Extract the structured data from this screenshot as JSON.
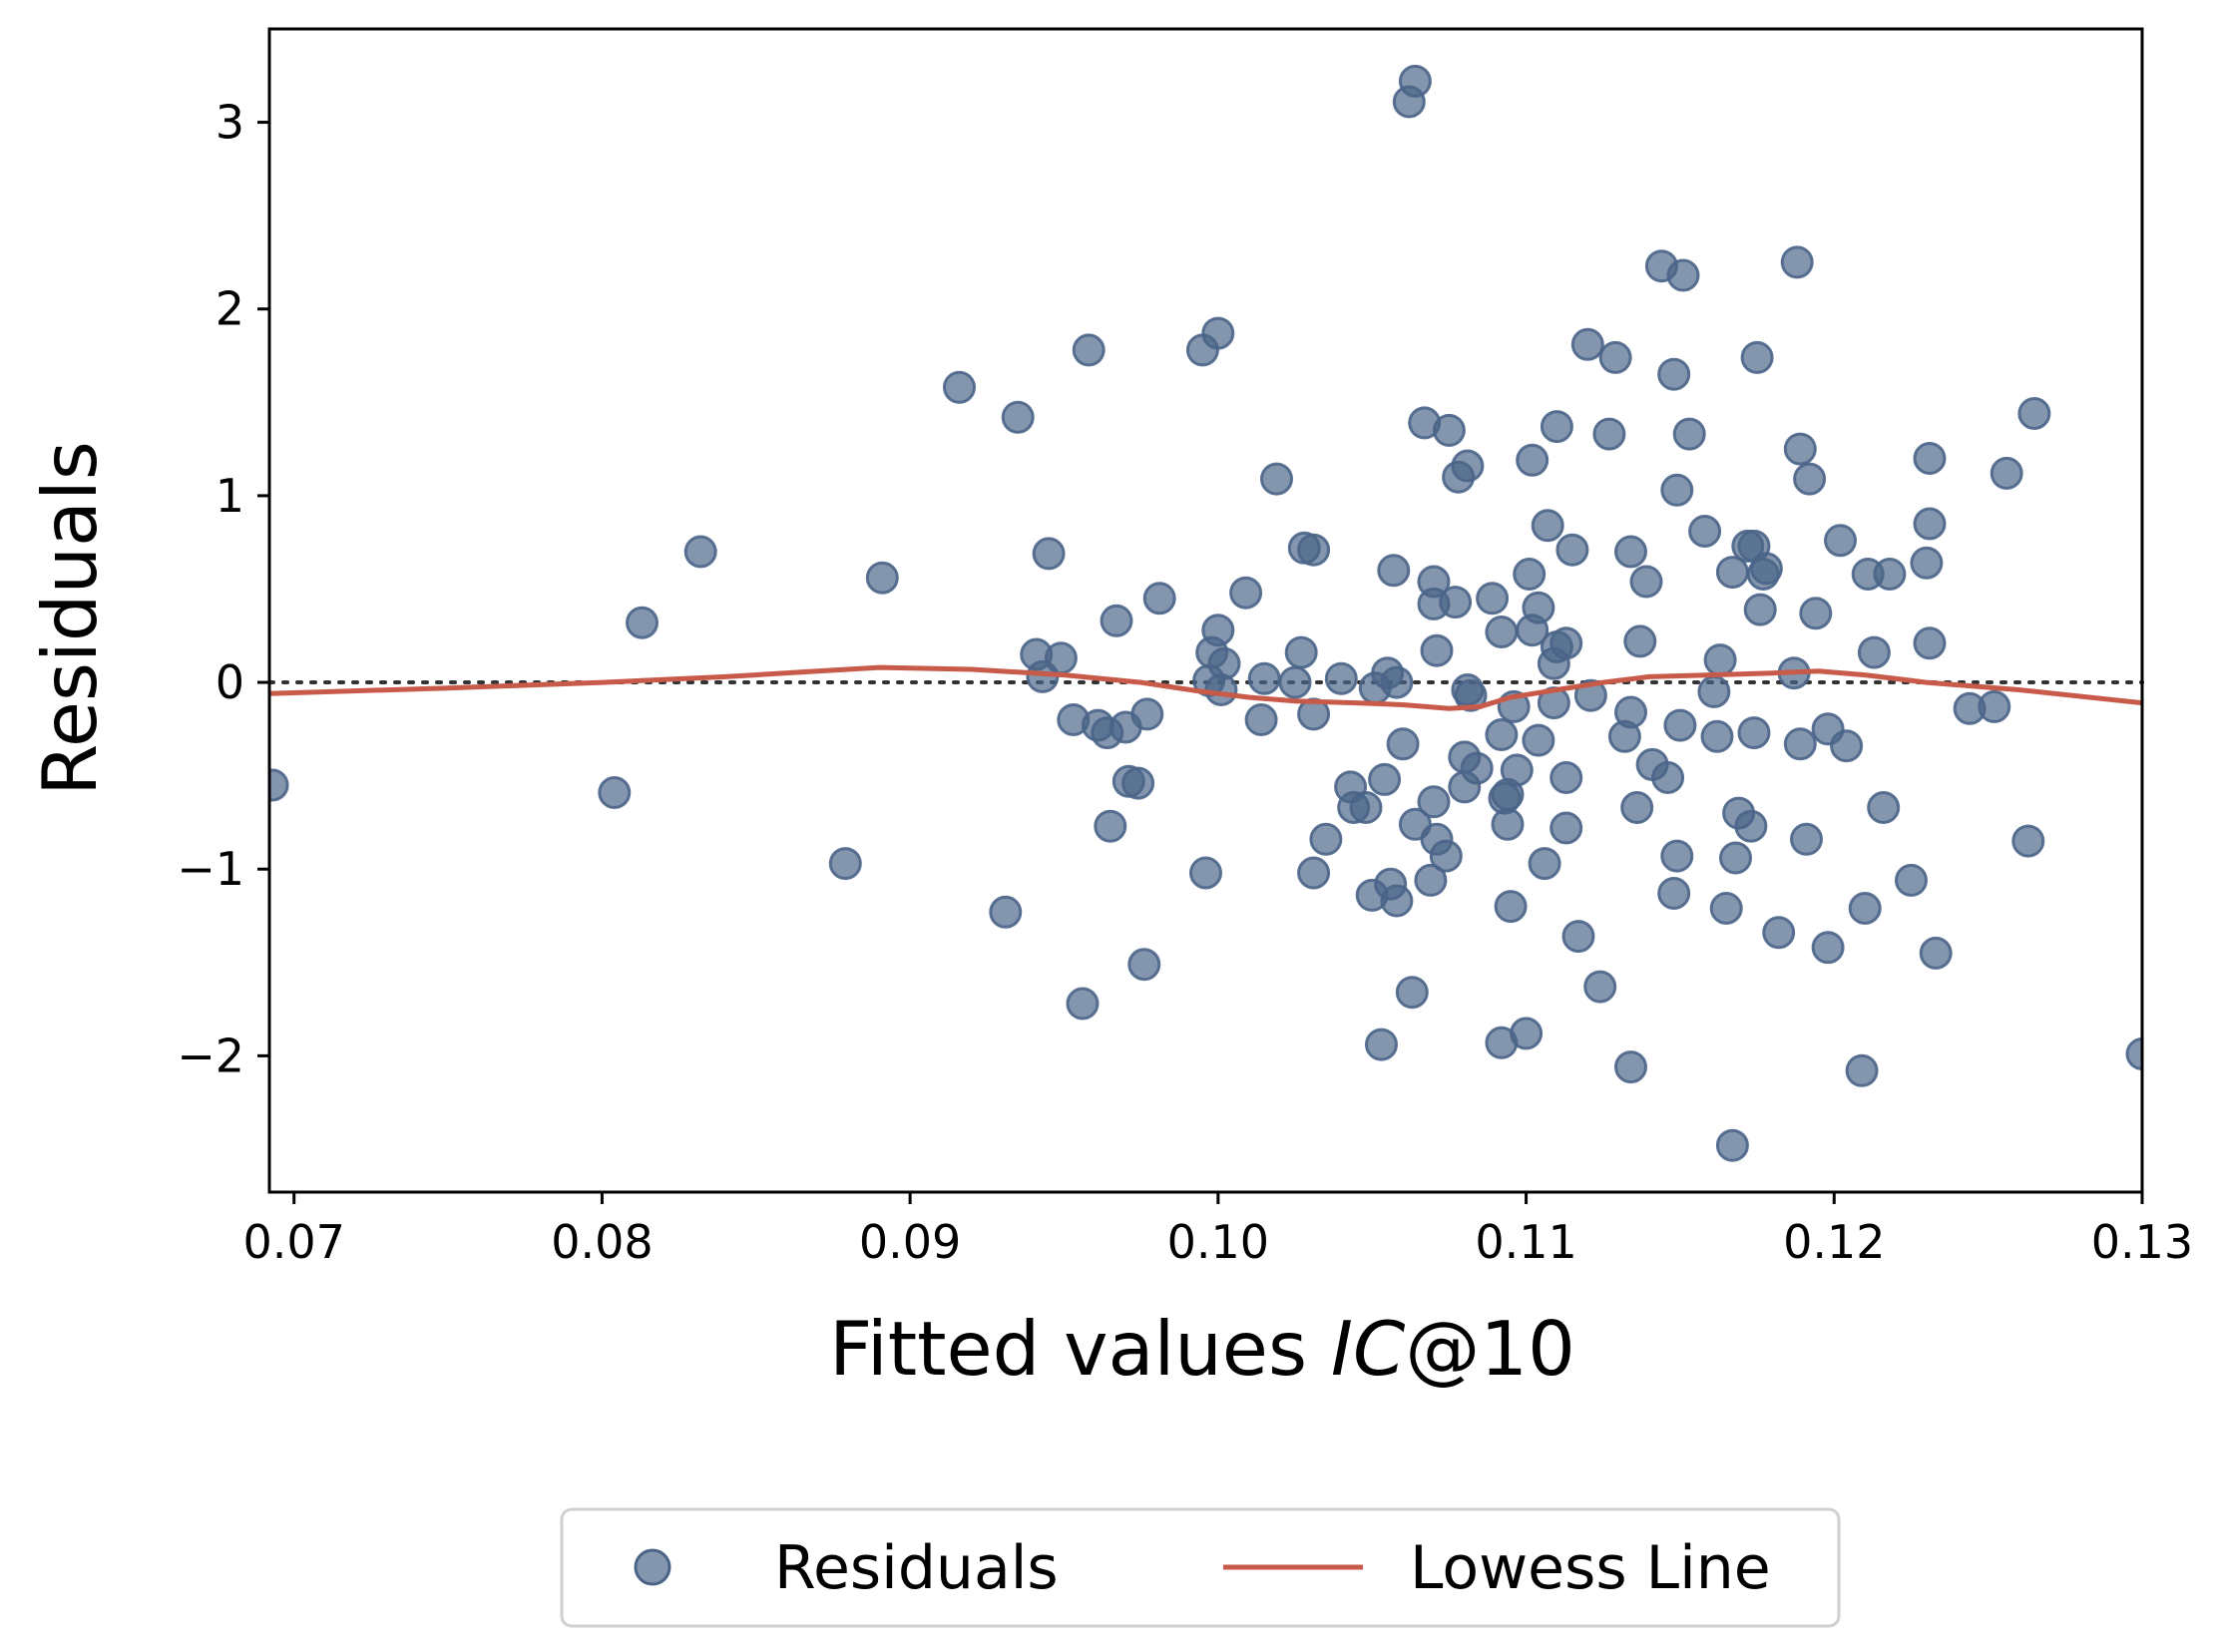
{
  "chart_data": {
    "type": "scatter",
    "title": "",
    "xlabel_prefix": "Fitted values ",
    "xlabel_italic": "IC",
    "xlabel_suffix": "@10",
    "ylabel": "Residuals",
    "xlim": [
      0.0692,
      0.13
    ],
    "ylim": [
      -2.73,
      3.5
    ],
    "xticks": [
      0.07,
      0.08,
      0.09,
      0.1,
      0.11,
      0.12,
      0.13
    ],
    "xtick_labels": [
      "0.07",
      "0.08",
      "0.09",
      "0.10",
      "0.11",
      "0.12",
      "0.13"
    ],
    "yticks": [
      -2,
      -1,
      0,
      1,
      2,
      3
    ],
    "ytick_labels": [
      "−2",
      "−1",
      "0",
      "1",
      "2",
      "3"
    ],
    "zero_reference_line": 0,
    "grid": false,
    "legend_position": "bottom-center-outside",
    "colors": {
      "residuals": "#4a6488",
      "lowess": "#c85a4a",
      "reference": "#333333"
    },
    "series": [
      {
        "name": "Residuals",
        "kind": "scatter",
        "points": [
          [
            0.0693,
            -0.55
          ],
          [
            0.0804,
            -0.59
          ],
          [
            0.0813,
            0.32
          ],
          [
            0.0832,
            0.7
          ],
          [
            0.0879,
            -0.97
          ],
          [
            0.0891,
            0.56
          ],
          [
            0.0916,
            1.58
          ],
          [
            0.0931,
            -1.23
          ],
          [
            0.0935,
            1.42
          ],
          [
            0.0941,
            0.15
          ],
          [
            0.0943,
            0.03
          ],
          [
            0.0945,
            0.69
          ],
          [
            0.0949,
            0.13
          ],
          [
            0.0953,
            -0.2
          ],
          [
            0.0956,
            -1.72
          ],
          [
            0.0958,
            1.78
          ],
          [
            0.0961,
            -0.23
          ],
          [
            0.0964,
            -0.27
          ],
          [
            0.0965,
            -0.77
          ],
          [
            0.0967,
            0.33
          ],
          [
            0.097,
            -0.24
          ],
          [
            0.0971,
            -0.53
          ],
          [
            0.0974,
            -0.54
          ],
          [
            0.0976,
            -1.51
          ],
          [
            0.0977,
            -0.17
          ],
          [
            0.0981,
            0.45
          ],
          [
            0.0995,
            1.78
          ],
          [
            0.0996,
            -1.02
          ],
          [
            0.0997,
            0.01
          ],
          [
            0.0998,
            0.16
          ],
          [
            0.1,
            1.87
          ],
          [
            0.1,
            0.28
          ],
          [
            0.1001,
            -0.04
          ],
          [
            0.1002,
            0.1
          ],
          [
            0.1009,
            0.48
          ],
          [
            0.1015,
            0.02
          ],
          [
            0.1014,
            -0.2
          ],
          [
            0.1019,
            1.09
          ],
          [
            0.1025,
            0.0
          ],
          [
            0.1027,
            0.16
          ],
          [
            0.1028,
            0.72
          ],
          [
            0.1031,
            0.71
          ],
          [
            0.1031,
            -1.02
          ],
          [
            0.1031,
            -0.17
          ],
          [
            0.1035,
            -0.84
          ],
          [
            0.104,
            0.02
          ],
          [
            0.1043,
            -0.56
          ],
          [
            0.1044,
            -0.67
          ],
          [
            0.1048,
            -0.67
          ],
          [
            0.105,
            -1.14
          ],
          [
            0.1051,
            -0.03
          ],
          [
            0.1053,
            -1.94
          ],
          [
            0.1054,
            -0.52
          ],
          [
            0.1055,
            0.05
          ],
          [
            0.1056,
            -1.08
          ],
          [
            0.1057,
            0.6
          ],
          [
            0.1058,
            -1.17
          ],
          [
            0.1058,
            0.0
          ],
          [
            0.106,
            -0.33
          ],
          [
            0.1062,
            3.11
          ],
          [
            0.1063,
            -1.66
          ],
          [
            0.1064,
            3.22
          ],
          [
            0.1064,
            -0.76
          ],
          [
            0.1067,
            1.39
          ],
          [
            0.1069,
            -1.06
          ],
          [
            0.107,
            0.42
          ],
          [
            0.107,
            0.54
          ],
          [
            0.107,
            -0.64
          ],
          [
            0.1071,
            0.17
          ],
          [
            0.1071,
            -0.84
          ],
          [
            0.1074,
            -0.93
          ],
          [
            0.1075,
            1.35
          ],
          [
            0.1077,
            0.43
          ],
          [
            0.1078,
            1.1
          ],
          [
            0.108,
            -0.4
          ],
          [
            0.108,
            -0.56
          ],
          [
            0.1081,
            -0.04
          ],
          [
            0.1081,
            1.16
          ],
          [
            0.1082,
            -0.07
          ],
          [
            0.1084,
            -0.46
          ],
          [
            0.1089,
            0.45
          ],
          [
            0.1092,
            0.27
          ],
          [
            0.1092,
            -1.93
          ],
          [
            0.1092,
            -0.28
          ],
          [
            0.1093,
            -0.62
          ],
          [
            0.1094,
            -0.6
          ],
          [
            0.1094,
            -0.76
          ],
          [
            0.1095,
            -1.2
          ],
          [
            0.1096,
            -0.13
          ],
          [
            0.1097,
            -0.47
          ],
          [
            0.11,
            -1.88
          ],
          [
            0.1101,
            0.58
          ],
          [
            0.1102,
            1.19
          ],
          [
            0.1102,
            0.28
          ],
          [
            0.1104,
            0.4
          ],
          [
            0.1104,
            -0.31
          ],
          [
            0.1106,
            -0.97
          ],
          [
            0.1107,
            0.84
          ],
          [
            0.1109,
            0.1
          ],
          [
            0.1109,
            -0.11
          ],
          [
            0.111,
            0.19
          ],
          [
            0.111,
            1.37
          ],
          [
            0.1113,
            0.21
          ],
          [
            0.1113,
            -0.51
          ],
          [
            0.1113,
            -0.78
          ],
          [
            0.1115,
            0.71
          ],
          [
            0.1117,
            -1.36
          ],
          [
            0.112,
            1.81
          ],
          [
            0.1121,
            -0.07
          ],
          [
            0.1124,
            -1.63
          ],
          [
            0.1127,
            1.33
          ],
          [
            0.1129,
            1.74
          ],
          [
            0.1132,
            -0.29
          ],
          [
            0.1134,
            -2.06
          ],
          [
            0.1134,
            -0.16
          ],
          [
            0.1134,
            0.7
          ],
          [
            0.1136,
            -0.67
          ],
          [
            0.1137,
            0.22
          ],
          [
            0.1139,
            0.54
          ],
          [
            0.1141,
            -0.44
          ],
          [
            0.1144,
            2.23
          ],
          [
            0.1146,
            -0.51
          ],
          [
            0.1148,
            1.65
          ],
          [
            0.1148,
            -1.13
          ],
          [
            0.1149,
            1.03
          ],
          [
            0.1149,
            -0.93
          ],
          [
            0.115,
            -0.23
          ],
          [
            0.1151,
            2.18
          ],
          [
            0.1153,
            1.33
          ],
          [
            0.1158,
            0.81
          ],
          [
            0.1161,
            -0.05
          ],
          [
            0.1162,
            -0.29
          ],
          [
            0.1163,
            0.12
          ],
          [
            0.1165,
            -1.21
          ],
          [
            0.1167,
            -2.48
          ],
          [
            0.1167,
            0.59
          ],
          [
            0.1168,
            -0.94
          ],
          [
            0.1169,
            -0.7
          ],
          [
            0.1172,
            0.73
          ],
          [
            0.1173,
            -0.77
          ],
          [
            0.1174,
            0.73
          ],
          [
            0.1174,
            -0.27
          ],
          [
            0.1175,
            1.74
          ],
          [
            0.1176,
            0.39
          ],
          [
            0.1177,
            0.58
          ],
          [
            0.1178,
            0.61
          ],
          [
            0.1182,
            -1.34
          ],
          [
            0.1187,
            0.05
          ],
          [
            0.1188,
            2.25
          ],
          [
            0.1189,
            1.25
          ],
          [
            0.1189,
            -0.33
          ],
          [
            0.1191,
            -0.84
          ],
          [
            0.1192,
            1.09
          ],
          [
            0.1194,
            0.37
          ],
          [
            0.1198,
            -1.42
          ],
          [
            0.1198,
            -0.25
          ],
          [
            0.1202,
            0.76
          ],
          [
            0.1204,
            -0.34
          ],
          [
            0.1209,
            -2.08
          ],
          [
            0.121,
            -1.21
          ],
          [
            0.1211,
            0.58
          ],
          [
            0.1213,
            0.16
          ],
          [
            0.1216,
            -0.67
          ],
          [
            0.1218,
            0.58
          ],
          [
            0.1225,
            -1.06
          ],
          [
            0.123,
            0.64
          ],
          [
            0.1231,
            1.2
          ],
          [
            0.1231,
            0.85
          ],
          [
            0.1231,
            0.21
          ],
          [
            0.1233,
            -1.45
          ],
          [
            0.1244,
            -0.14
          ],
          [
            0.1252,
            -0.13
          ],
          [
            0.1256,
            1.12
          ],
          [
            0.1263,
            -0.85
          ],
          [
            0.1265,
            1.44
          ],
          [
            0.13,
            -1.99
          ]
        ]
      },
      {
        "name": "Lowess Line",
        "kind": "line",
        "points": [
          [
            0.0692,
            -0.06
          ],
          [
            0.075,
            -0.03
          ],
          [
            0.08,
            0.0
          ],
          [
            0.084,
            0.03
          ],
          [
            0.087,
            0.06
          ],
          [
            0.089,
            0.08
          ],
          [
            0.092,
            0.07
          ],
          [
            0.095,
            0.04
          ],
          [
            0.0975,
            0.0
          ],
          [
            0.0995,
            -0.05
          ],
          [
            0.101,
            -0.08
          ],
          [
            0.1025,
            -0.1
          ],
          [
            0.1045,
            -0.11
          ],
          [
            0.106,
            -0.12
          ],
          [
            0.1075,
            -0.14
          ],
          [
            0.1085,
            -0.13
          ],
          [
            0.1095,
            -0.08
          ],
          [
            0.111,
            -0.04
          ],
          [
            0.1125,
            0.0
          ],
          [
            0.114,
            0.03
          ],
          [
            0.116,
            0.04
          ],
          [
            0.118,
            0.05
          ],
          [
            0.1195,
            0.06
          ],
          [
            0.121,
            0.04
          ],
          [
            0.123,
            0.0
          ],
          [
            0.126,
            -0.04
          ],
          [
            0.13,
            -0.11
          ]
        ]
      }
    ]
  }
}
